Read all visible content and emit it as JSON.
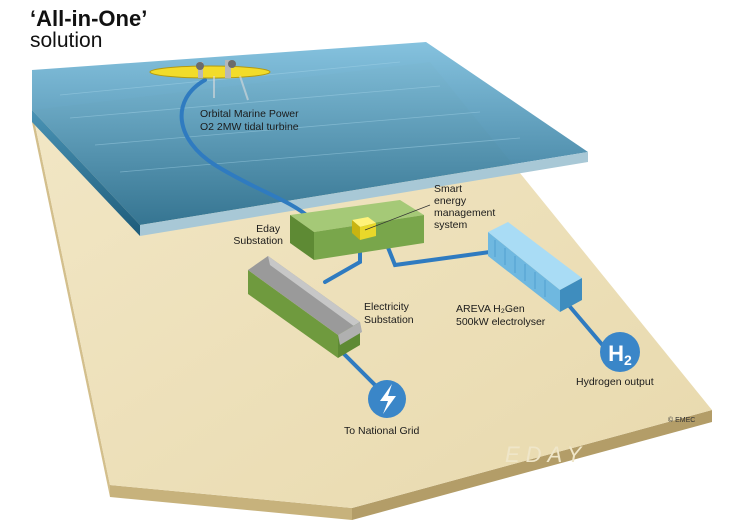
{
  "title": {
    "main": "‘All-in-One’",
    "sub": "solution"
  },
  "labels": {
    "turbine": [
      "Orbital Marine Power",
      "O2 2MW tidal turbine"
    ],
    "smart_system": [
      "Smart",
      "energy",
      "management",
      "system"
    ],
    "eday_substation": [
      "Eday",
      "Substation"
    ],
    "electricity_substation": [
      "Electricity",
      "Substation"
    ],
    "electrolyser": [
      "AREVA H₂Gen",
      "500kW electrolyser"
    ],
    "hydrogen_output": "Hydrogen output",
    "national_grid": "To National Grid",
    "watermark": "EDAY",
    "copyright": "© EMEC"
  },
  "icons": {
    "hydrogen": {
      "name": "h2-icon",
      "text": "H2"
    },
    "grid": {
      "name": "lightning-icon"
    }
  },
  "colors": {
    "sea": "#3f8fb6",
    "land": "#efe3bd",
    "cable": "#3a86c8",
    "turbine": "#f2dc2a",
    "substation": "#7ba74c",
    "electrolyser": "#7cc4ea",
    "icon_fill": "#3a86c8"
  }
}
